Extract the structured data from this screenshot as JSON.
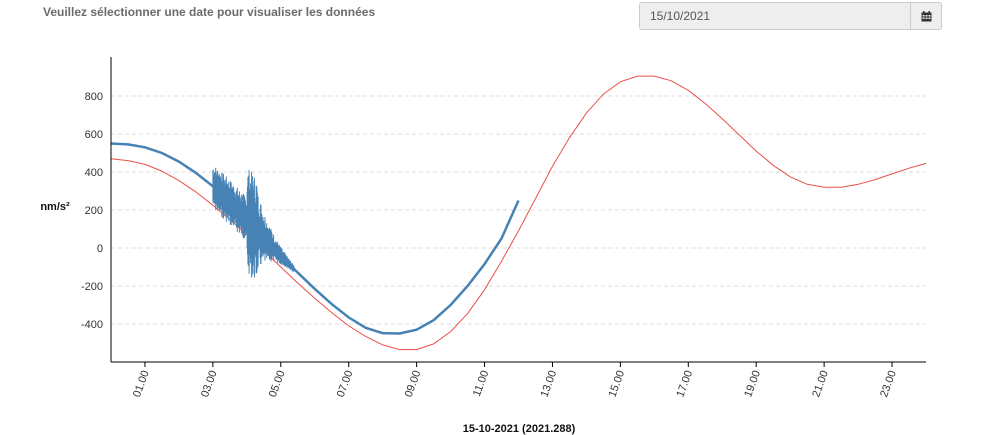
{
  "header": {
    "prompt": "Veuillez sélectionner une date pour visualiser les données",
    "date_value": "15/10/2021",
    "calendar_icon": "calendar-icon"
  },
  "colors": {
    "observed": "#4682b4",
    "model": "#e8504a",
    "grid": "#dddddd",
    "axis": "#000000"
  },
  "chart_data": {
    "type": "line",
    "title": "",
    "xlabel": "15-10-2021 (2021.288)",
    "ylabel": "nm/s²",
    "xlim": [
      0,
      24
    ],
    "ylim": [
      -600,
      1000
    ],
    "yticks": [
      "800",
      "600",
      "400",
      "200",
      "0",
      "-200",
      "-400"
    ],
    "ytick_values": [
      800,
      600,
      400,
      200,
      0,
      -200,
      -400
    ],
    "xticks": [
      "01.00",
      "03.00",
      "05.00",
      "07.00",
      "09.00",
      "11.00",
      "13.00",
      "15.00",
      "17.00",
      "19.00",
      "21.00",
      "23.00"
    ],
    "xtick_values": [
      1,
      3,
      5,
      7,
      9,
      11,
      13,
      15,
      17,
      19,
      21,
      23
    ],
    "grid": "horizontal-dashed",
    "series": [
      {
        "x": [
          0,
          0.5,
          1,
          1.5,
          2,
          2.5,
          3,
          3.5,
          4,
          4.5,
          5,
          5.5,
          6,
          6.5,
          7,
          7.5,
          8,
          8.5,
          9,
          9.5,
          10,
          10.5,
          11,
          11.5,
          12,
          12.5,
          13,
          13.5,
          14,
          14.5,
          15,
          15.5,
          16,
          16.5,
          17,
          17.5,
          18,
          18.5,
          19,
          19.5,
          20,
          20.5,
          21,
          21.5,
          22,
          22.5,
          23,
          23.5,
          24
        ],
        "values": [
          470,
          460,
          440,
          405,
          355,
          295,
          225,
          150,
          70,
          -15,
          -100,
          -185,
          -265,
          -340,
          -410,
          -465,
          -510,
          -535,
          -535,
          -505,
          -440,
          -345,
          -220,
          -70,
          90,
          260,
          430,
          580,
          710,
          810,
          875,
          905,
          905,
          880,
          830,
          760,
          680,
          595,
          510,
          435,
          375,
          335,
          320,
          320,
          335,
          360,
          390,
          420,
          445
        ]
      },
      {
        "x": [
          0,
          0.5,
          1,
          1.5,
          2,
          2.5,
          3,
          3.5,
          4,
          4.5,
          5,
          5.5,
          6,
          6.5,
          7,
          7.5,
          8,
          8.5,
          9,
          9.5,
          10,
          10.5,
          11,
          11.5,
          12
        ],
        "values": [
          550,
          545,
          530,
          500,
          455,
          395,
          325,
          240,
          150,
          55,
          -40,
          -130,
          -215,
          -295,
          -365,
          -420,
          -448,
          -450,
          -430,
          -380,
          -300,
          -200,
          -85,
          50,
          250
        ]
      }
    ]
  }
}
